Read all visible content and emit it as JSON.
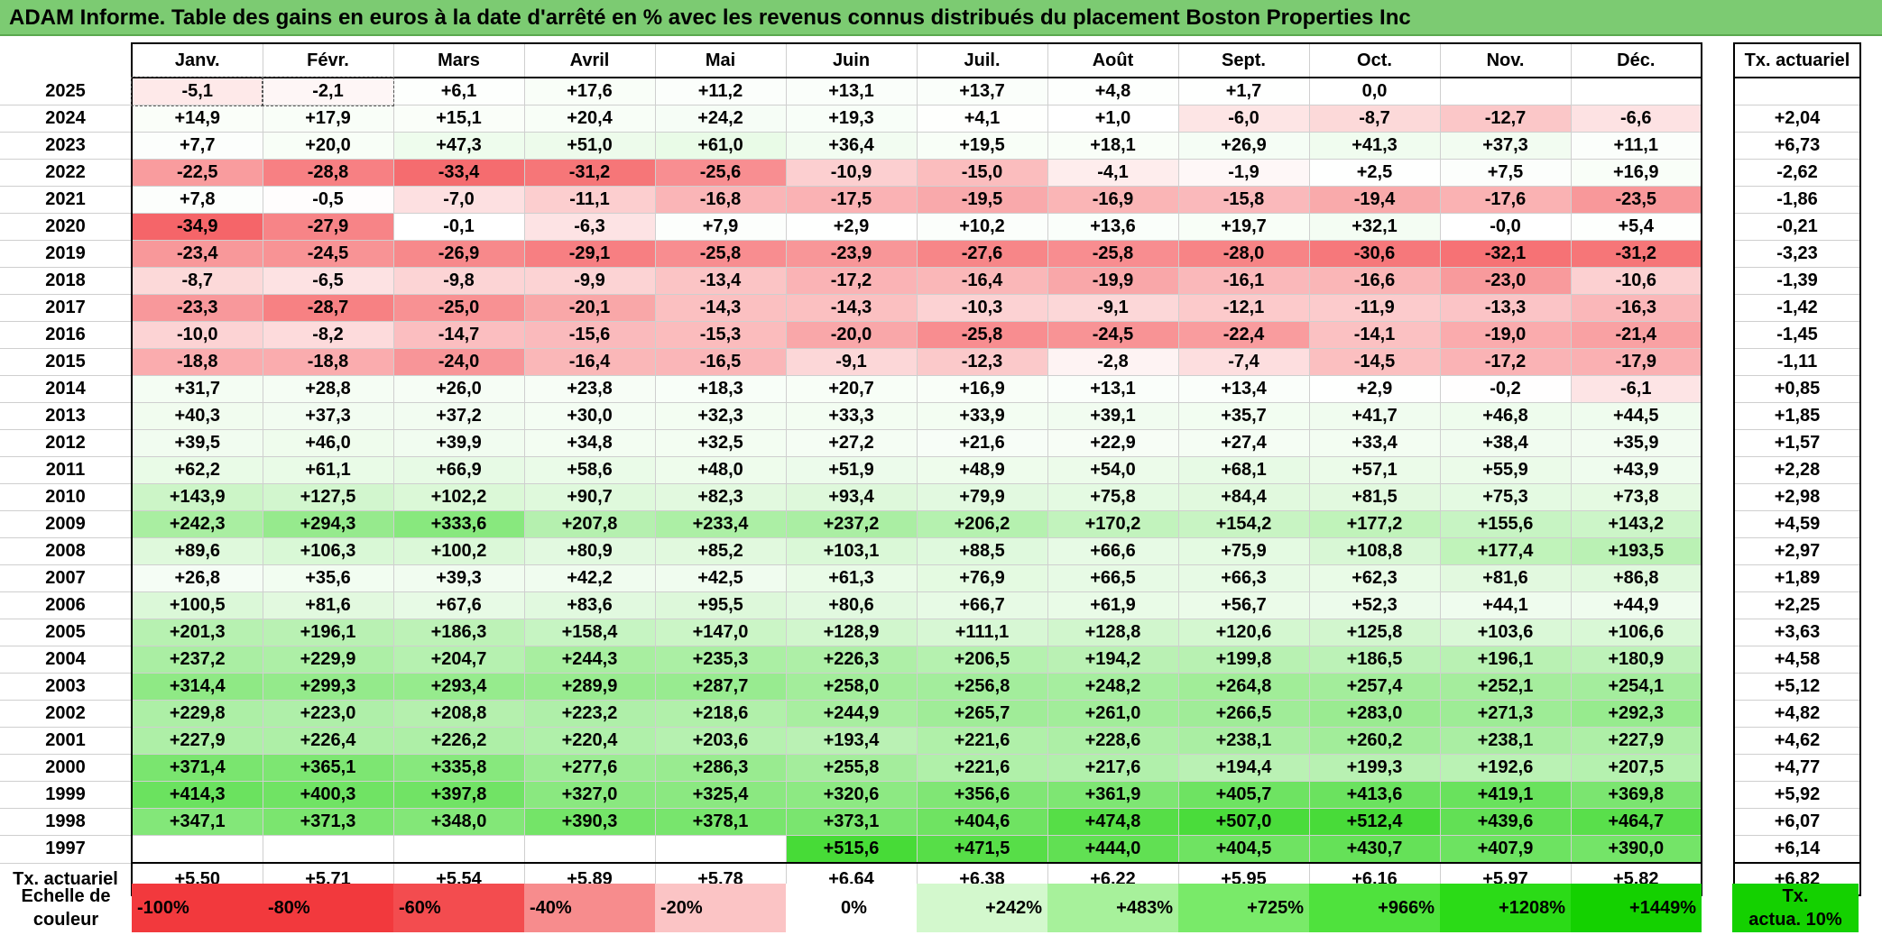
{
  "title": "ADAM Informe. Table des gains en euros à la date d'arrêté en % avec les revenus connus distribués du placement Boston Properties Inc",
  "months": [
    "Janv.",
    "Févr.",
    "Mars",
    "Avril",
    "Mai",
    "Juin",
    "Juil.",
    "Août",
    "Sept.",
    "Oct.",
    "Nov.",
    "Déc."
  ],
  "actuarial_header": "Tx. actuariel",
  "rows": [
    {
      "year": "2025",
      "values": [
        "-5,1",
        "-2,1",
        "+6,1",
        "+17,6",
        "+11,2",
        "+13,1",
        "+13,7",
        "+4,8",
        "+1,7",
        "0,0",
        "",
        ""
      ],
      "rate": ""
    },
    {
      "year": "2024",
      "values": [
        "+14,9",
        "+17,9",
        "+15,1",
        "+20,4",
        "+24,2",
        "+19,3",
        "+4,1",
        "+1,0",
        "-6,0",
        "-8,7",
        "-12,7",
        "-6,6"
      ],
      "rate": "+2,04"
    },
    {
      "year": "2023",
      "values": [
        "+7,7",
        "+20,0",
        "+47,3",
        "+51,0",
        "+61,0",
        "+36,4",
        "+19,5",
        "+18,1",
        "+26,9",
        "+41,3",
        "+37,3",
        "+11,1"
      ],
      "rate": "+6,73"
    },
    {
      "year": "2022",
      "values": [
        "-22,5",
        "-28,8",
        "-33,4",
        "-31,2",
        "-25,6",
        "-10,9",
        "-15,0",
        "-4,1",
        "-1,9",
        "+2,5",
        "+7,5",
        "+16,9"
      ],
      "rate": "-2,62"
    },
    {
      "year": "2021",
      "values": [
        "+7,8",
        "-0,5",
        "-7,0",
        "-11,1",
        "-16,8",
        "-17,5",
        "-19,5",
        "-16,9",
        "-15,8",
        "-19,4",
        "-17,6",
        "-23,5"
      ],
      "rate": "-1,86"
    },
    {
      "year": "2020",
      "values": [
        "-34,9",
        "-27,9",
        "-0,1",
        "-6,3",
        "+7,9",
        "+2,9",
        "+10,2",
        "+13,6",
        "+19,7",
        "+32,1",
        "-0,0",
        "+5,4"
      ],
      "rate": "-0,21"
    },
    {
      "year": "2019",
      "values": [
        "-23,4",
        "-24,5",
        "-26,9",
        "-29,1",
        "-25,8",
        "-23,9",
        "-27,6",
        "-25,8",
        "-28,0",
        "-30,6",
        "-32,1",
        "-31,2"
      ],
      "rate": "-3,23"
    },
    {
      "year": "2018",
      "values": [
        "-8,7",
        "-6,5",
        "-9,8",
        "-9,9",
        "-13,4",
        "-17,2",
        "-16,4",
        "-19,9",
        "-16,1",
        "-16,6",
        "-23,0",
        "-10,6"
      ],
      "rate": "-1,39"
    },
    {
      "year": "2017",
      "values": [
        "-23,3",
        "-28,7",
        "-25,0",
        "-20,1",
        "-14,3",
        "-14,3",
        "-10,3",
        "-9,1",
        "-12,1",
        "-11,9",
        "-13,3",
        "-16,3"
      ],
      "rate": "-1,42"
    },
    {
      "year": "2016",
      "values": [
        "-10,0",
        "-8,2",
        "-14,7",
        "-15,6",
        "-15,3",
        "-20,0",
        "-25,8",
        "-24,5",
        "-22,4",
        "-14,1",
        "-19,0",
        "-21,4"
      ],
      "rate": "-1,45"
    },
    {
      "year": "2015",
      "values": [
        "-18,8",
        "-18,8",
        "-24,0",
        "-16,4",
        "-16,5",
        "-9,1",
        "-12,3",
        "-2,8",
        "-7,4",
        "-14,5",
        "-17,2",
        "-17,9"
      ],
      "rate": "-1,11"
    },
    {
      "year": "2014",
      "values": [
        "+31,7",
        "+28,8",
        "+26,0",
        "+23,8",
        "+18,3",
        "+20,7",
        "+16,9",
        "+13,1",
        "+13,4",
        "+2,9",
        "-0,2",
        "-6,1"
      ],
      "rate": "+0,85"
    },
    {
      "year": "2013",
      "values": [
        "+40,3",
        "+37,3",
        "+37,2",
        "+30,0",
        "+32,3",
        "+33,3",
        "+33,9",
        "+39,1",
        "+35,7",
        "+41,7",
        "+46,8",
        "+44,5"
      ],
      "rate": "+1,85"
    },
    {
      "year": "2012",
      "values": [
        "+39,5",
        "+46,0",
        "+39,9",
        "+34,8",
        "+32,5",
        "+27,2",
        "+21,6",
        "+22,9",
        "+27,4",
        "+33,4",
        "+38,4",
        "+35,9"
      ],
      "rate": "+1,57"
    },
    {
      "year": "2011",
      "values": [
        "+62,2",
        "+61,1",
        "+66,9",
        "+58,6",
        "+48,0",
        "+51,9",
        "+48,9",
        "+54,0",
        "+68,1",
        "+57,1",
        "+55,9",
        "+43,9"
      ],
      "rate": "+2,28"
    },
    {
      "year": "2010",
      "values": [
        "+143,9",
        "+127,5",
        "+102,2",
        "+90,7",
        "+82,3",
        "+93,4",
        "+79,9",
        "+75,8",
        "+84,4",
        "+81,5",
        "+75,3",
        "+73,8"
      ],
      "rate": "+2,98"
    },
    {
      "year": "2009",
      "values": [
        "+242,3",
        "+294,3",
        "+333,6",
        "+207,8",
        "+233,4",
        "+237,2",
        "+206,2",
        "+170,2",
        "+154,2",
        "+177,2",
        "+155,6",
        "+143,2"
      ],
      "rate": "+4,59"
    },
    {
      "year": "2008",
      "values": [
        "+89,6",
        "+106,3",
        "+100,2",
        "+80,9",
        "+85,2",
        "+103,1",
        "+88,5",
        "+66,6",
        "+75,9",
        "+108,8",
        "+177,4",
        "+193,5"
      ],
      "rate": "+2,97"
    },
    {
      "year": "2007",
      "values": [
        "+26,8",
        "+35,6",
        "+39,3",
        "+42,2",
        "+42,5",
        "+61,3",
        "+76,9",
        "+66,5",
        "+66,3",
        "+62,3",
        "+81,6",
        "+86,8"
      ],
      "rate": "+1,89"
    },
    {
      "year": "2006",
      "values": [
        "+100,5",
        "+81,6",
        "+67,6",
        "+83,6",
        "+95,5",
        "+80,6",
        "+66,7",
        "+61,9",
        "+56,7",
        "+52,3",
        "+44,1",
        "+44,9"
      ],
      "rate": "+2,25"
    },
    {
      "year": "2005",
      "values": [
        "+201,3",
        "+196,1",
        "+186,3",
        "+158,4",
        "+147,0",
        "+128,9",
        "+111,1",
        "+128,8",
        "+120,6",
        "+125,8",
        "+103,6",
        "+106,6"
      ],
      "rate": "+3,63"
    },
    {
      "year": "2004",
      "values": [
        "+237,2",
        "+229,9",
        "+204,7",
        "+244,3",
        "+235,3",
        "+226,3",
        "+206,5",
        "+194,2",
        "+199,8",
        "+186,5",
        "+196,1",
        "+180,9"
      ],
      "rate": "+4,58"
    },
    {
      "year": "2003",
      "values": [
        "+314,4",
        "+299,3",
        "+293,4",
        "+289,9",
        "+287,7",
        "+258,0",
        "+256,8",
        "+248,2",
        "+264,8",
        "+257,4",
        "+252,1",
        "+254,1"
      ],
      "rate": "+5,12"
    },
    {
      "year": "2002",
      "values": [
        "+229,8",
        "+223,0",
        "+208,8",
        "+223,2",
        "+218,6",
        "+244,9",
        "+265,7",
        "+261,0",
        "+266,5",
        "+283,0",
        "+271,3",
        "+292,3"
      ],
      "rate": "+4,82"
    },
    {
      "year": "2001",
      "values": [
        "+227,9",
        "+226,4",
        "+226,2",
        "+220,4",
        "+203,6",
        "+193,4",
        "+221,6",
        "+228,6",
        "+238,1",
        "+260,2",
        "+238,1",
        "+227,9"
      ],
      "rate": "+4,62"
    },
    {
      "year": "2000",
      "values": [
        "+371,4",
        "+365,1",
        "+335,8",
        "+277,6",
        "+286,3",
        "+255,8",
        "+221,6",
        "+217,6",
        "+194,4",
        "+199,3",
        "+192,6",
        "+207,5"
      ],
      "rate": "+4,77"
    },
    {
      "year": "1999",
      "values": [
        "+414,3",
        "+400,3",
        "+397,8",
        "+327,0",
        "+325,4",
        "+320,6",
        "+356,6",
        "+361,9",
        "+405,7",
        "+413,6",
        "+419,1",
        "+369,8"
      ],
      "rate": "+5,92"
    },
    {
      "year": "1998",
      "values": [
        "+347,1",
        "+371,3",
        "+348,0",
        "+390,3",
        "+378,1",
        "+373,1",
        "+404,6",
        "+474,8",
        "+507,0",
        "+512,4",
        "+439,6",
        "+464,7"
      ],
      "rate": "+6,07"
    },
    {
      "year": "1997",
      "values": [
        "",
        "",
        "",
        "",
        "",
        "+515,6",
        "+471,5",
        "+444,0",
        "+404,5",
        "+430,7",
        "+407,9",
        "+390,0"
      ],
      "rate": "+6,14"
    }
  ],
  "footer": {
    "label": "Tx. actuariel",
    "values": [
      "+5,50",
      "+5,71",
      "+5,54",
      "+5,89",
      "+5,78",
      "+6,64",
      "+6,38",
      "+6,22",
      "+5,95",
      "+6,16",
      "+5,97",
      "+5,82"
    ],
    "total": "+6,82"
  },
  "scale": {
    "label_line1": "Echelle de",
    "label_line2": "couleur",
    "items": [
      {
        "text": "-100%",
        "color": "#f2393d",
        "align": "left"
      },
      {
        "text": "-80%",
        "color": "#f2393d",
        "align": "left"
      },
      {
        "text": "-60%",
        "color": "#f34c4f",
        "align": "left"
      },
      {
        "text": "-40%",
        "color": "#f78c8d",
        "align": "left"
      },
      {
        "text": "-20%",
        "color": "#fbc4c5",
        "align": "left"
      },
      {
        "text": "0%",
        "color": "#ffffff",
        "align": "center"
      },
      {
        "text": "+242%",
        "color": "#d3f8cd",
        "align": "right"
      },
      {
        "text": "+483%",
        "color": "#a7f19b",
        "align": "right"
      },
      {
        "text": "+725%",
        "color": "#79ea69",
        "align": "right"
      },
      {
        "text": "+966%",
        "color": "#4fe23d",
        "align": "right"
      },
      {
        "text": "+1208%",
        "color": "#2bdb17",
        "align": "right"
      },
      {
        "text": "+1449%",
        "color": "#14d100",
        "align": "right"
      }
    ],
    "rate_label_line1": "Tx.",
    "rate_label_line2": "actua. 10%",
    "rate_color": "#14d100"
  },
  "colors": {
    "title_bar": "#7ccb72",
    "negative_max": "#f2393d",
    "positive_max": "#14d100"
  }
}
